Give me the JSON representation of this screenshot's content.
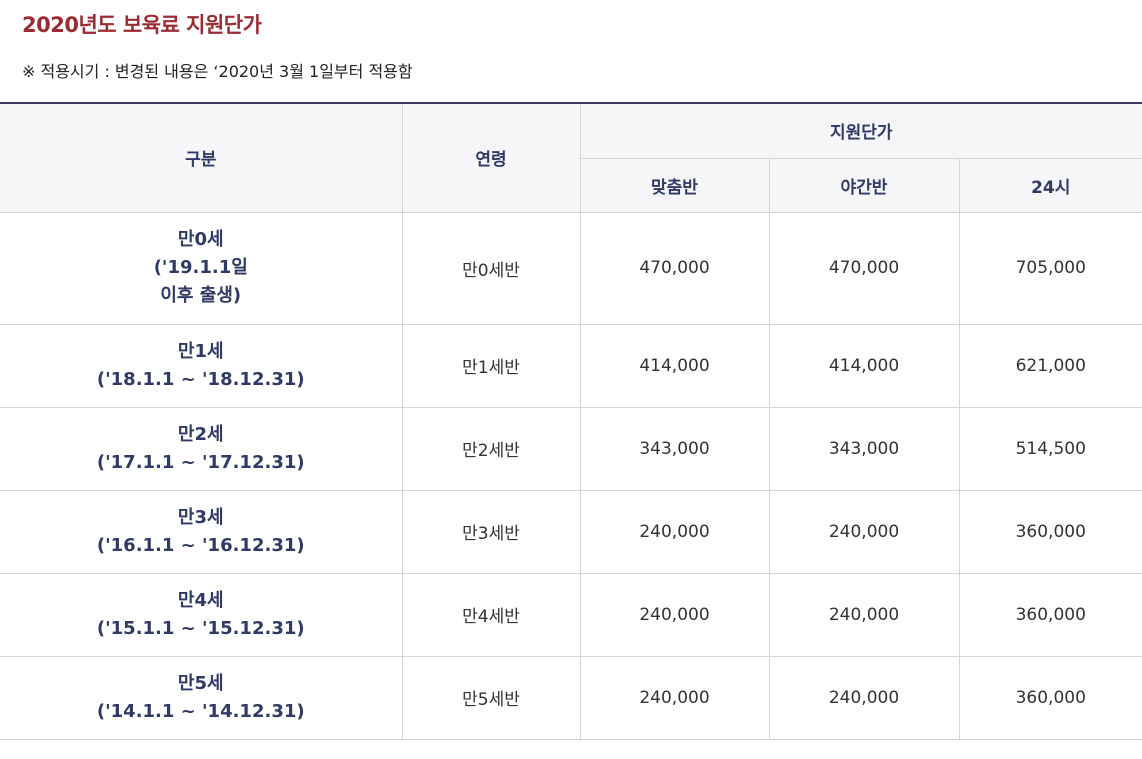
{
  "title": "2020년도 보육료 지원단가",
  "note": "※ 적용시기 : 변경된 내용은 ‘2020년 3월 1일부터 적용함",
  "table": {
    "headers": {
      "category": "구분",
      "age": "연령",
      "support": "지원단가",
      "regular": "맞춤반",
      "night": "야간반",
      "full_day": "24시"
    },
    "rows": [
      {
        "cat": [
          "만0세",
          "('19.1.1일",
          "이후 출생)"
        ],
        "age": "만0세반",
        "regular": "470,000",
        "night": "470,000",
        "full_day": "705,000"
      },
      {
        "cat": [
          "만1세",
          "('18.1.1 ~ '18.12.31)"
        ],
        "age": "만1세반",
        "regular": "414,000",
        "night": "414,000",
        "full_day": "621,000"
      },
      {
        "cat": [
          "만2세",
          "('17.1.1 ~ '17.12.31)"
        ],
        "age": "만2세반",
        "regular": "343,000",
        "night": "343,000",
        "full_day": "514,500"
      },
      {
        "cat": [
          "만3세",
          "('16.1.1 ~ '16.12.31)"
        ],
        "age": "만3세반",
        "regular": "240,000",
        "night": "240,000",
        "full_day": "360,000"
      },
      {
        "cat": [
          "만4세",
          "('15.1.1 ~ '15.12.31)"
        ],
        "age": "만4세반",
        "regular": "240,000",
        "night": "240,000",
        "full_day": "360,000"
      },
      {
        "cat": [
          "만5세",
          "('14.1.1 ~ '14.12.31)"
        ],
        "age": "만5세반",
        "regular": "240,000",
        "night": "240,000",
        "full_day": "360,000"
      }
    ]
  }
}
